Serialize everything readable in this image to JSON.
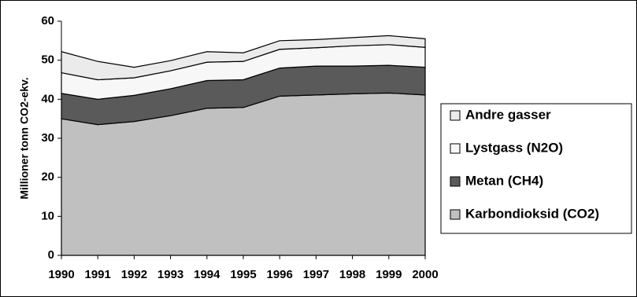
{
  "chart_data": {
    "type": "stacked-area",
    "y_label": "Millioner tonn CO2-ekv.",
    "x": [
      1990,
      1991,
      1992,
      1993,
      1994,
      1995,
      1996,
      1997,
      1998,
      1999,
      2000
    ],
    "xlim": [
      1990,
      2000
    ],
    "xticks": [
      1990,
      1991,
      1992,
      1993,
      1994,
      1995,
      1996,
      1997,
      1998,
      1999,
      2000
    ],
    "ylim": [
      0,
      60
    ],
    "yticks": [
      0,
      10,
      20,
      30,
      40,
      50,
      60
    ],
    "series": [
      {
        "name": "Karbondioksid (CO2)",
        "color": "#c0c0c0",
        "values": [
          35,
          33.5,
          34.3,
          35.8,
          37.7,
          37.9,
          40.8,
          41.1,
          41.4,
          41.6,
          41.1
        ]
      },
      {
        "name": "Metan (CH4)",
        "color": "#5a5a5a",
        "values": [
          6.5,
          6.5,
          6.7,
          6.9,
          7.1,
          7.1,
          7.2,
          7.4,
          7.1,
          7.1,
          7.1
        ]
      },
      {
        "name": "Lystgass (N2O)",
        "color": "#f7f7f7",
        "values": [
          5.3,
          5,
          4.5,
          4.6,
          4.7,
          4.7,
          4.8,
          4.7,
          5.2,
          5.3,
          5.1
        ]
      },
      {
        "name": "Andre gasser",
        "color": "#ebebeb",
        "values": [
          5.4,
          4.7,
          2.7,
          2.6,
          2.7,
          2.2,
          2.2,
          2.1,
          2.1,
          2.3,
          2.2
        ]
      }
    ]
  }
}
